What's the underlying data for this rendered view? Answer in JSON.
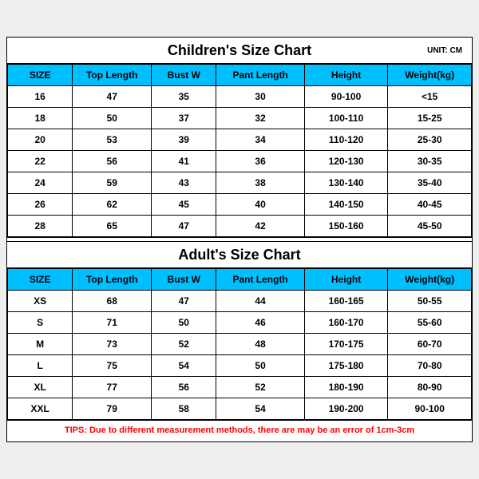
{
  "children": {
    "title": "Children's Size Chart",
    "unit": "UNIT: CM",
    "columns": [
      "SIZE",
      "Top Length",
      "Bust W",
      "Pant Length",
      "Height",
      "Weight(kg)"
    ],
    "rows": [
      [
        "16",
        "47",
        "35",
        "30",
        "90-100",
        "<15"
      ],
      [
        "18",
        "50",
        "37",
        "32",
        "100-110",
        "15-25"
      ],
      [
        "20",
        "53",
        "39",
        "34",
        "110-120",
        "25-30"
      ],
      [
        "22",
        "56",
        "41",
        "36",
        "120-130",
        "30-35"
      ],
      [
        "24",
        "59",
        "43",
        "38",
        "130-140",
        "35-40"
      ],
      [
        "26",
        "62",
        "45",
        "40",
        "140-150",
        "40-45"
      ],
      [
        "28",
        "65",
        "47",
        "42",
        "150-160",
        "45-50"
      ]
    ]
  },
  "adult": {
    "title": "Adult's Size Chart",
    "columns": [
      "SIZE",
      "Top Length",
      "Bust W",
      "Pant Length",
      "Height",
      "Weight(kg)"
    ],
    "rows": [
      [
        "XS",
        "68",
        "47",
        "44",
        "160-165",
        "50-55"
      ],
      [
        "S",
        "71",
        "50",
        "46",
        "160-170",
        "55-60"
      ],
      [
        "M",
        "73",
        "52",
        "48",
        "170-175",
        "60-70"
      ],
      [
        "L",
        "75",
        "54",
        "50",
        "175-180",
        "70-80"
      ],
      [
        "XL",
        "77",
        "56",
        "52",
        "180-190",
        "80-90"
      ],
      [
        "XXL",
        "79",
        "58",
        "54",
        "190-200",
        "90-100"
      ]
    ]
  },
  "tips": "TIPS: Due to different measurement methods, there are may be an error of 1cm-3cm",
  "colors": {
    "header_bg": "#00bfff",
    "border": "#000000",
    "tips_color": "#ff0000",
    "page_bg": "#eeeeee",
    "card_bg": "#ffffff"
  }
}
